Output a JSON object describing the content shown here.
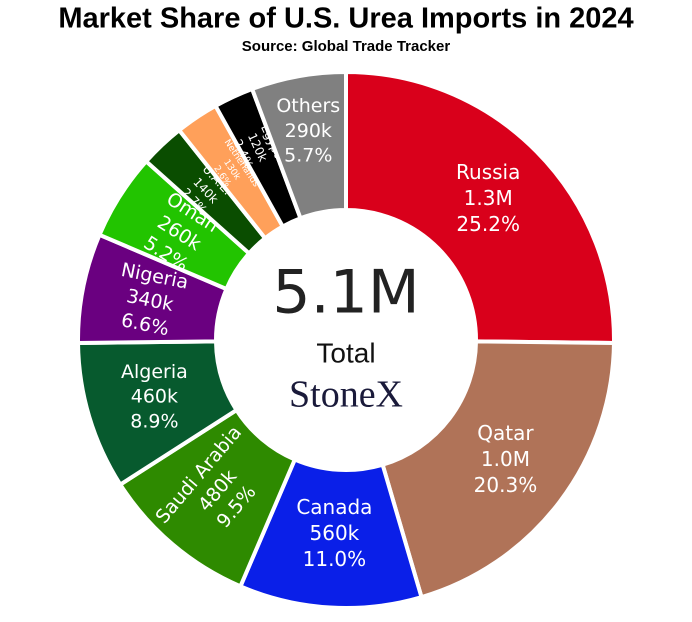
{
  "chart_data": {
    "type": "donut",
    "title": "Market Share of U.S. Urea Imports in 2024",
    "subtitle": "Source: Global Trade Tracker",
    "center_value": "5.1M",
    "center_label": "Total",
    "logo": "StoneX",
    "categories": [
      "Russia",
      "Qatar",
      "Canada",
      "Saudi Arabia",
      "Algeria",
      "Nigeria",
      "Oman",
      "U.A.E.",
      "Netherlands",
      "Egypt",
      "Others"
    ],
    "values": [
      25.2,
      20.3,
      11.0,
      9.5,
      8.9,
      6.6,
      5.2,
      2.7,
      2.6,
      2.4,
      5.7
    ],
    "value_labels": [
      "25.2%",
      "20.3%",
      "11.0%",
      "9.5%",
      "8.9%",
      "6.6%",
      "5.2%",
      "2.7%",
      "2.6%",
      "2.4%",
      "5.7%"
    ],
    "amounts": [
      1300000,
      1000000,
      560000,
      480000,
      460000,
      340000,
      260000,
      140000,
      130000,
      120000,
      290000
    ],
    "amount_labels": [
      "1.3M",
      "1.0M",
      "560k",
      "480k",
      "460k",
      "340k",
      "260k",
      "140k",
      "130k",
      "120k",
      "290k"
    ],
    "colors": [
      "#d9001b",
      "#b07358",
      "#0a1fe8",
      "#2e8a00",
      "#075a2e",
      "#6a0080",
      "#22c400",
      "#0a4d00",
      "#ffa05a",
      "#000000",
      "#808080"
    ]
  }
}
